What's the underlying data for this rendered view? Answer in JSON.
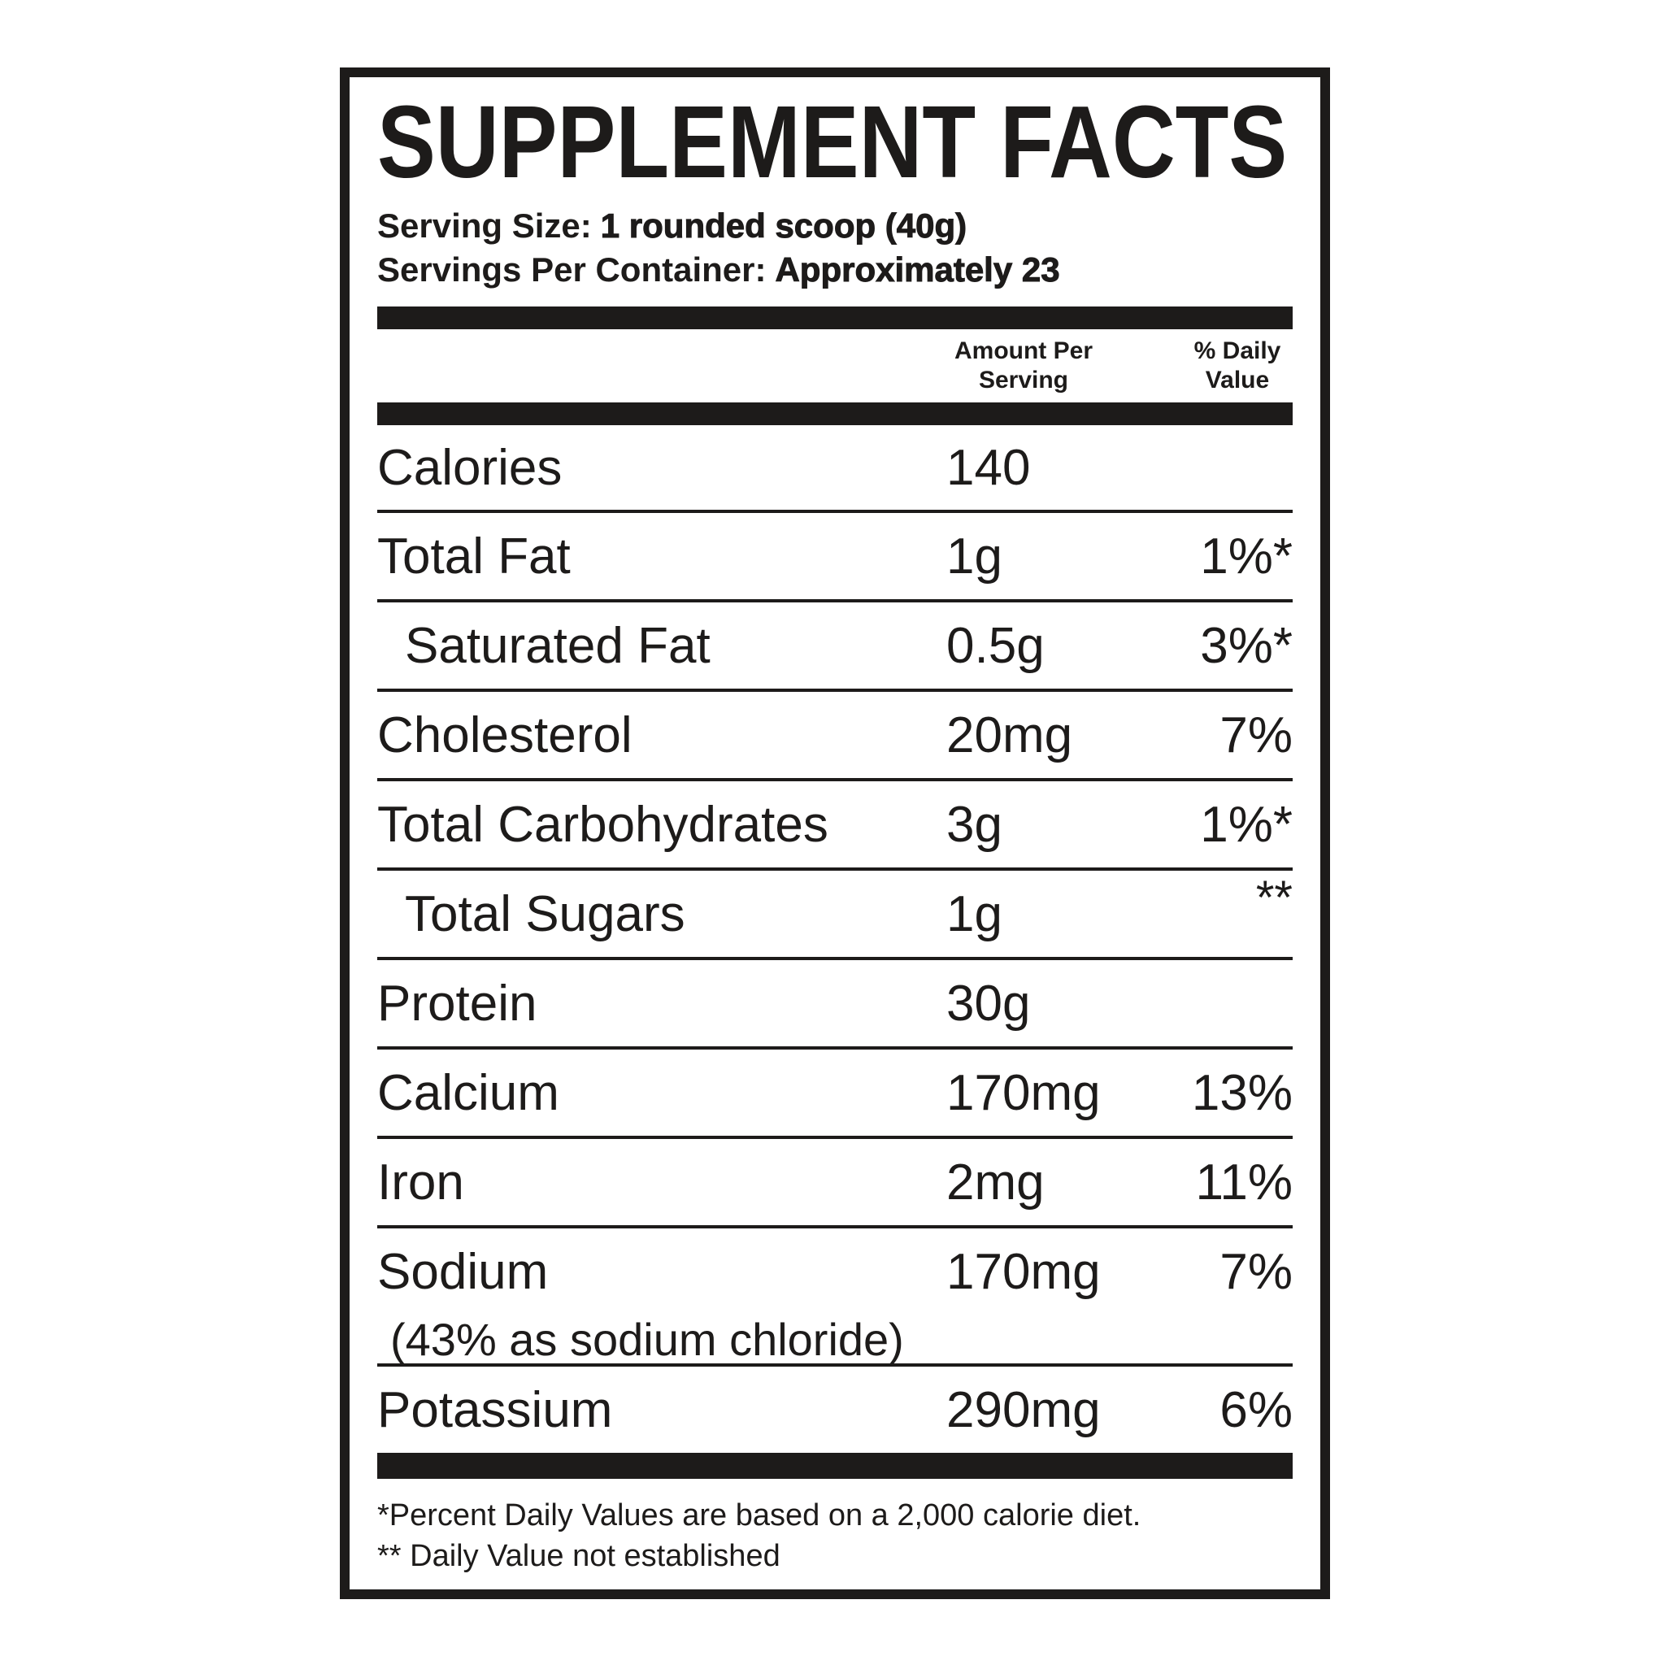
{
  "title": "SUPPLEMENT FACTS",
  "serving_size": {
    "label": "Serving Size:",
    "value": "1 rounded scoop (40g)"
  },
  "servings_per_container": {
    "label": "Servings Per Container:",
    "value": "Approximately 23"
  },
  "columns": {
    "amount_line1": "Amount Per",
    "amount_line2": "Serving",
    "dv_line1": "% Daily",
    "dv_line2": "Value"
  },
  "rows": [
    {
      "label": "Calories",
      "amount": "140",
      "dv": "",
      "indent": false,
      "dv_raised": false,
      "sub": ""
    },
    {
      "label": "Total Fat",
      "amount": "1g",
      "dv": "1%*",
      "indent": false,
      "dv_raised": false,
      "sub": ""
    },
    {
      "label": "Saturated Fat",
      "amount": "0.5g",
      "dv": "3%*",
      "indent": true,
      "dv_raised": false,
      "sub": ""
    },
    {
      "label": "Cholesterol",
      "amount": "20mg",
      "dv": "7%",
      "indent": false,
      "dv_raised": false,
      "sub": ""
    },
    {
      "label": "Total Carbohydrates",
      "amount": "3g",
      "dv": "1%*",
      "indent": false,
      "dv_raised": false,
      "sub": ""
    },
    {
      "label": "Total Sugars",
      "amount": "1g",
      "dv": "**",
      "indent": true,
      "dv_raised": true,
      "sub": ""
    },
    {
      "label": "Protein",
      "amount": "30g",
      "dv": "",
      "indent": false,
      "dv_raised": false,
      "sub": ""
    },
    {
      "label": "Calcium",
      "amount": "170mg",
      "dv": "13%",
      "indent": false,
      "dv_raised": false,
      "sub": ""
    },
    {
      "label": "Iron",
      "amount": "2mg",
      "dv": "11%",
      "indent": false,
      "dv_raised": false,
      "sub": ""
    },
    {
      "label": "Sodium",
      "amount": "170mg",
      "dv": "7%",
      "indent": false,
      "dv_raised": false,
      "sub": "(43% as sodium chloride)"
    },
    {
      "label": "Potassium",
      "amount": "290mg",
      "dv": "6%",
      "indent": false,
      "dv_raised": false,
      "sub": ""
    }
  ],
  "footnotes": {
    "daily_values": "*Percent Daily Values are based on a 2,000 calorie diet.",
    "not_established": "** Daily Value not established"
  },
  "colors": {
    "ink": "#1d1b1a",
    "background": "#ffffff"
  }
}
